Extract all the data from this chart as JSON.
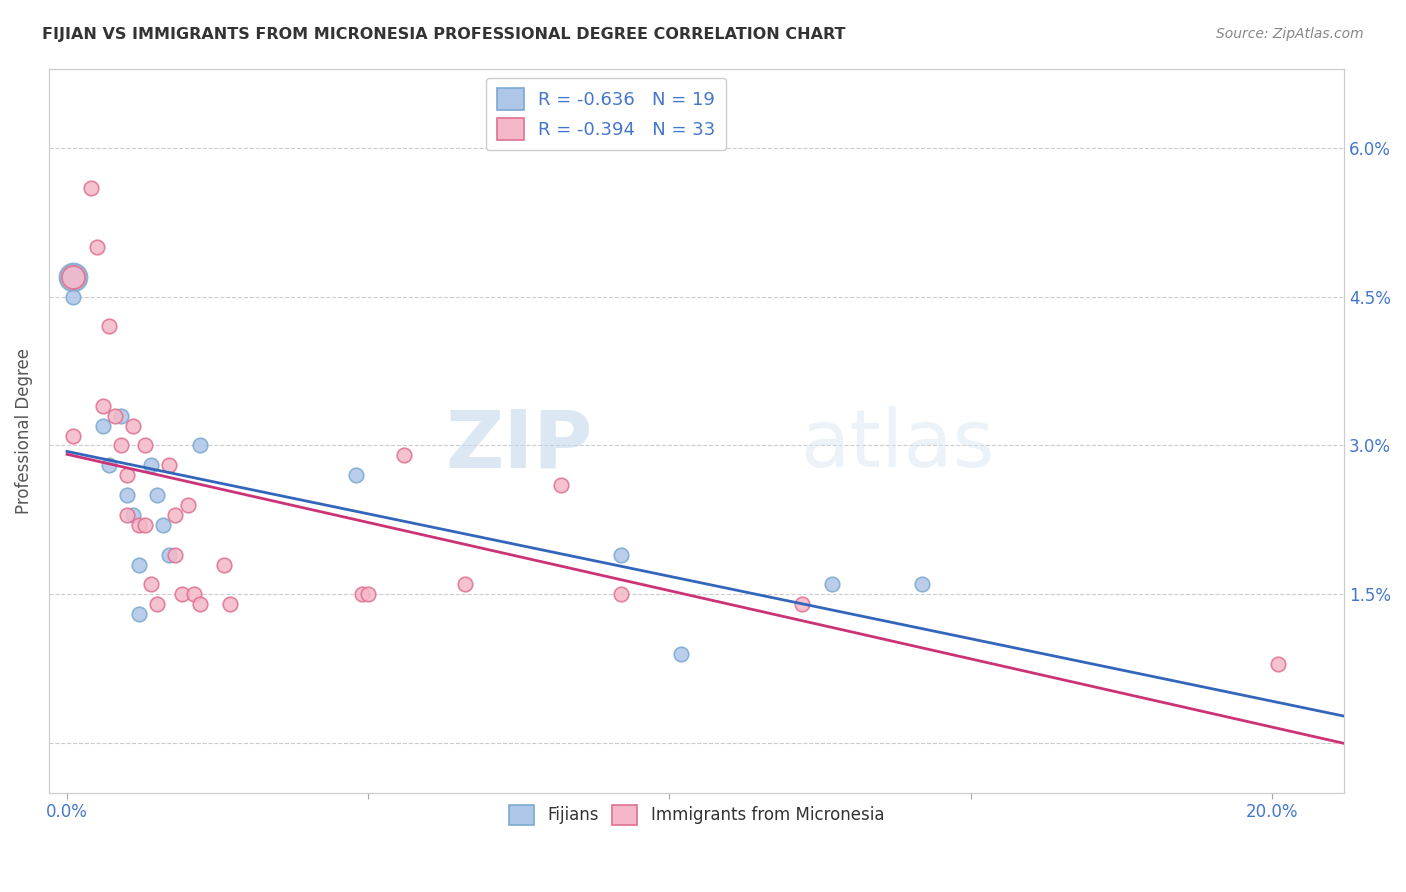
{
  "title": "FIJIAN VS IMMIGRANTS FROM MICRONESIA PROFESSIONAL DEGREE CORRELATION CHART",
  "source": "Source: ZipAtlas.com",
  "ylabel": "Professional Degree",
  "fijian_color": "#aec6e8",
  "fijian_edge": "#7aaad0",
  "micronesia_color": "#f4b8c8",
  "micronesia_edge": "#e07090",
  "fijian_R": -0.636,
  "fijian_N": 19,
  "micronesia_R": -0.394,
  "micronesia_N": 33,
  "legend_label_fijian": "Fijians",
  "legend_label_micronesia": "Immigrants from Micronesia",
  "x_tick_positions": [
    0.0,
    0.05,
    0.1,
    0.15,
    0.2
  ],
  "x_tick_labels": [
    "0.0%",
    "",
    "",
    "",
    "20.0%"
  ],
  "y_ticks": [
    0.0,
    0.015,
    0.03,
    0.045,
    0.06
  ],
  "y_tick_labels_right": [
    "",
    "1.5%",
    "3.0%",
    "4.5%",
    "6.0%"
  ],
  "xlim": [
    -0.003,
    0.212
  ],
  "ylim": [
    -0.005,
    0.068
  ],
  "fijian_x": [
    0.001,
    0.001,
    0.006,
    0.007,
    0.009,
    0.01,
    0.011,
    0.012,
    0.012,
    0.014,
    0.015,
    0.016,
    0.017,
    0.022,
    0.048,
    0.092,
    0.102,
    0.127,
    0.142
  ],
  "fijian_y": [
    0.047,
    0.045,
    0.032,
    0.028,
    0.033,
    0.025,
    0.023,
    0.018,
    0.013,
    0.028,
    0.025,
    0.022,
    0.019,
    0.03,
    0.027,
    0.019,
    0.009,
    0.016,
    0.016
  ],
  "micronesia_x": [
    0.001,
    0.001,
    0.004,
    0.005,
    0.006,
    0.007,
    0.008,
    0.009,
    0.01,
    0.01,
    0.011,
    0.012,
    0.013,
    0.013,
    0.014,
    0.015,
    0.017,
    0.018,
    0.018,
    0.019,
    0.02,
    0.021,
    0.022,
    0.026,
    0.027,
    0.049,
    0.05,
    0.056,
    0.066,
    0.082,
    0.092,
    0.122,
    0.201
  ],
  "micronesia_y": [
    0.047,
    0.031,
    0.056,
    0.05,
    0.034,
    0.042,
    0.033,
    0.03,
    0.027,
    0.023,
    0.032,
    0.022,
    0.03,
    0.022,
    0.016,
    0.014,
    0.028,
    0.023,
    0.019,
    0.015,
    0.024,
    0.015,
    0.014,
    0.018,
    0.014,
    0.015,
    0.015,
    0.029,
    0.016,
    0.026,
    0.015,
    0.014,
    0.008
  ],
  "watermark_zip": "ZIP",
  "watermark_atlas": "atlas",
  "grid_color": "#cccccc",
  "line_fijian_color": "#3366bb",
  "line_micronesia_color": "#cc3377",
  "dot_size": 110,
  "large_dot_size": 400,
  "tick_color": "#4477cc",
  "label_color": "#4477cc"
}
